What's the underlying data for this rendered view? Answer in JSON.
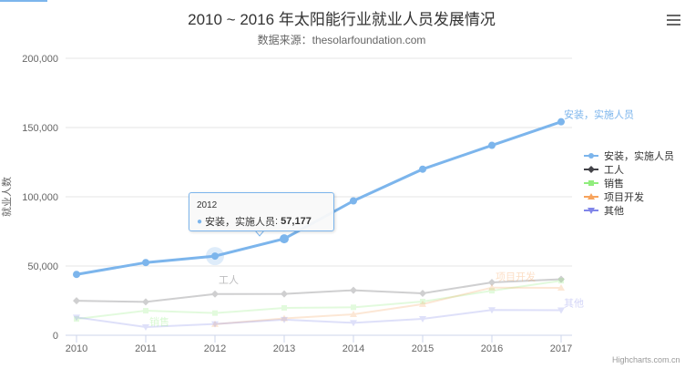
{
  "chart_data": {
    "type": "line",
    "title": "2010 ~ 2016 年太阳能行业就业人员发展情况",
    "subtitle": "数据来源：thesolarfoundation.com",
    "ylabel": "就业人数",
    "xlabel": "",
    "categories": [
      "2010",
      "2011",
      "2012",
      "2013",
      "2014",
      "2015",
      "2016",
      "2017"
    ],
    "ylim": [
      0,
      200000
    ],
    "yticks": [
      0,
      50000,
      100000,
      150000,
      200000
    ],
    "ytick_labels": [
      "0",
      "50,000",
      "100,000",
      "150,000",
      "200,000"
    ],
    "grid": true,
    "legend_position": "right",
    "series": [
      {
        "name": "安装，实施人员",
        "color": "#7cb5ec",
        "marker": "circle",
        "label": "安装，实施人员",
        "values": [
          43934,
          52503,
          57177,
          69658,
          97031,
          119931,
          137133,
          154175
        ]
      },
      {
        "name": "工人",
        "color": "#434348",
        "marker": "diamond",
        "label": "工人",
        "values": [
          24916,
          24064,
          29742,
          29851,
          32490,
          30282,
          38121,
          40434
        ]
      },
      {
        "name": "销售",
        "color": "#90ed7d",
        "marker": "square",
        "label": "销售",
        "values": [
          11744,
          17722,
          16005,
          19771,
          20185,
          24377,
          32147,
          39387
        ]
      },
      {
        "name": "项目开发",
        "color": "#f7a35c",
        "marker": "triangle",
        "label": "项目开发",
        "values": [
          null,
          null,
          7988,
          12169,
          15112,
          22452,
          34400,
          34227
        ]
      },
      {
        "name": "其他",
        "color": "#8085e9",
        "marker": "triangle-down",
        "label": "其他",
        "values": [
          12908,
          5948,
          8105,
          11248,
          8989,
          11816,
          18274,
          18111
        ]
      }
    ],
    "tooltip": {
      "category": "2012",
      "series_name": "安装，实施人员",
      "value_label": "57,177"
    },
    "credits": "Highcharts.com.cn"
  }
}
